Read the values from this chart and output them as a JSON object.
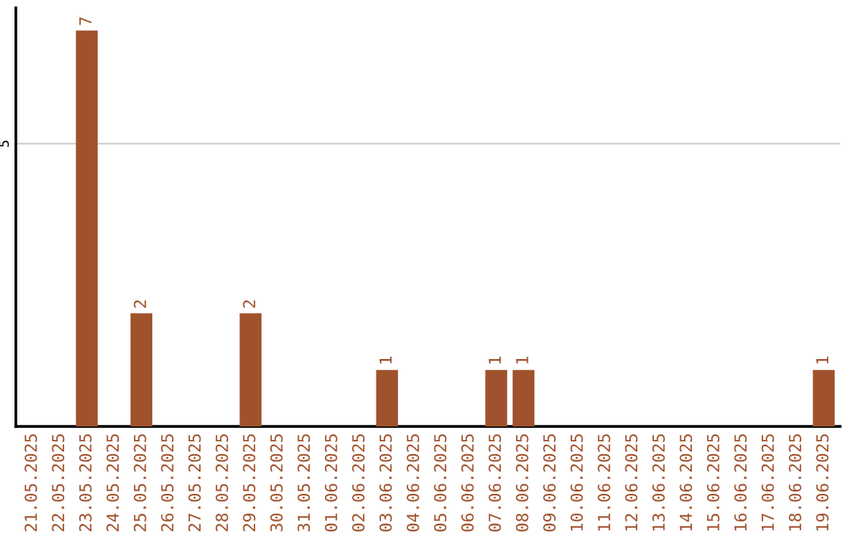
{
  "chart_data": {
    "type": "bar",
    "categories": [
      "21.05.2025",
      "22.05.2025",
      "23.05.2025",
      "24.05.2025",
      "25.05.2025",
      "26.05.2025",
      "27.05.2025",
      "28.05.2025",
      "29.05.2025",
      "30.05.2025",
      "31.05.2025",
      "01.06.2025",
      "02.06.2025",
      "03.06.2025",
      "04.06.2025",
      "05.06.2025",
      "06.06.2025",
      "07.06.2025",
      "08.06.2025",
      "09.06.2025",
      "10.06.2025",
      "11.06.2025",
      "12.06.2025",
      "13.06.2025",
      "14.06.2025",
      "15.06.2025",
      "16.06.2025",
      "17.06.2025",
      "18.06.2025",
      "19.06.2025"
    ],
    "values": [
      0,
      0,
      7,
      0,
      2,
      0,
      0,
      0,
      2,
      0,
      0,
      0,
      0,
      1,
      0,
      0,
      0,
      1,
      1,
      0,
      0,
      0,
      0,
      0,
      0,
      0,
      0,
      0,
      0,
      1
    ],
    "value_labels": [
      null,
      null,
      "7",
      null,
      "2",
      null,
      null,
      null,
      "2",
      null,
      null,
      null,
      null,
      "1",
      null,
      null,
      null,
      "1",
      "1",
      null,
      null,
      null,
      null,
      null,
      null,
      null,
      null,
      null,
      null,
      "1"
    ],
    "color": "#a0522d",
    "ylim": [
      0,
      7.4
    ],
    "yticks": [
      5
    ],
    "grid": "y"
  }
}
